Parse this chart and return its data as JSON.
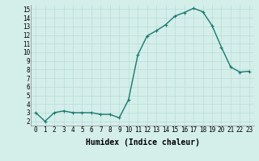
{
  "x": [
    0,
    1,
    2,
    3,
    4,
    5,
    6,
    7,
    8,
    9,
    10,
    11,
    12,
    13,
    14,
    15,
    16,
    17,
    18,
    19,
    20,
    21,
    22,
    23
  ],
  "y": [
    3,
    2,
    3,
    3.2,
    3,
    3,
    3,
    2.8,
    2.8,
    2.4,
    4.5,
    9.7,
    11.9,
    12.5,
    13.2,
    14.2,
    14.6,
    15.1,
    14.7,
    13.1,
    10.6,
    8.3,
    7.7,
    7.8
  ],
  "line_color": "#1a7a6e",
  "marker": "+",
  "marker_size": 3,
  "marker_color": "#1a7a6e",
  "xlabel": "Humidex (Indice chaleur)",
  "xlim": [
    -0.5,
    23.5
  ],
  "ylim": [
    1.5,
    15.5
  ],
  "yticks": [
    2,
    3,
    4,
    5,
    6,
    7,
    8,
    9,
    10,
    11,
    12,
    13,
    14,
    15
  ],
  "xticks": [
    0,
    1,
    2,
    3,
    4,
    5,
    6,
    7,
    8,
    9,
    10,
    11,
    12,
    13,
    14,
    15,
    16,
    17,
    18,
    19,
    20,
    21,
    22,
    23
  ],
  "grid_color": "#b8ddd8",
  "background_color": "#d4eeea",
  "tick_label_fontsize": 5.5,
  "xlabel_fontsize": 7,
  "linewidth": 1.0
}
